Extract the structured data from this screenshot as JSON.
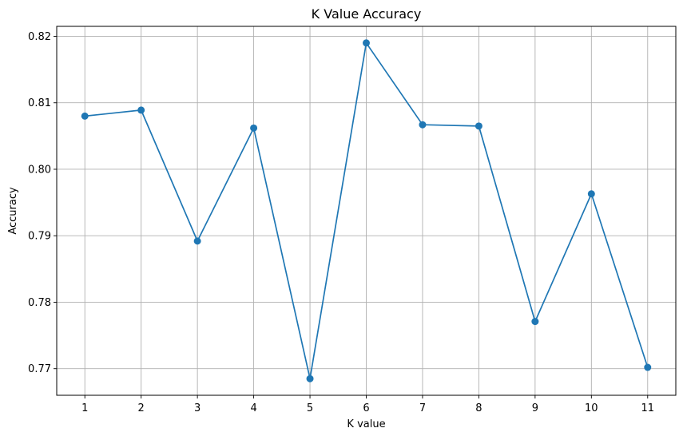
{
  "chart_data": {
    "type": "line",
    "title": "K Value Accuracy",
    "xlabel": "K value",
    "ylabel": "Accuracy",
    "x": [
      1,
      2,
      3,
      4,
      5,
      6,
      7,
      8,
      9,
      10,
      11
    ],
    "x_tick_labels": [
      "1",
      "2",
      "3",
      "4",
      "5",
      "6",
      "7",
      "8",
      "9",
      "10",
      "11"
    ],
    "y_ticks": [
      0.77,
      0.78,
      0.79,
      0.8,
      0.81,
      0.82
    ],
    "y_tick_labels": [
      "0.77",
      "0.78",
      "0.79",
      "0.80",
      "0.81",
      "0.82"
    ],
    "xlim": [
      0.5,
      11.5
    ],
    "ylim": [
      0.766,
      0.8215
    ],
    "grid": true,
    "marker": "circle",
    "series": [
      {
        "values": [
          0.808,
          0.8089,
          0.7892,
          0.8062,
          0.7685,
          0.819,
          0.8067,
          0.8065,
          0.7771,
          0.7963,
          0.7702
        ]
      }
    ],
    "colors": {
      "line": "#1f77b4",
      "grid": "#b0b0b0",
      "axes": "#000000"
    }
  }
}
